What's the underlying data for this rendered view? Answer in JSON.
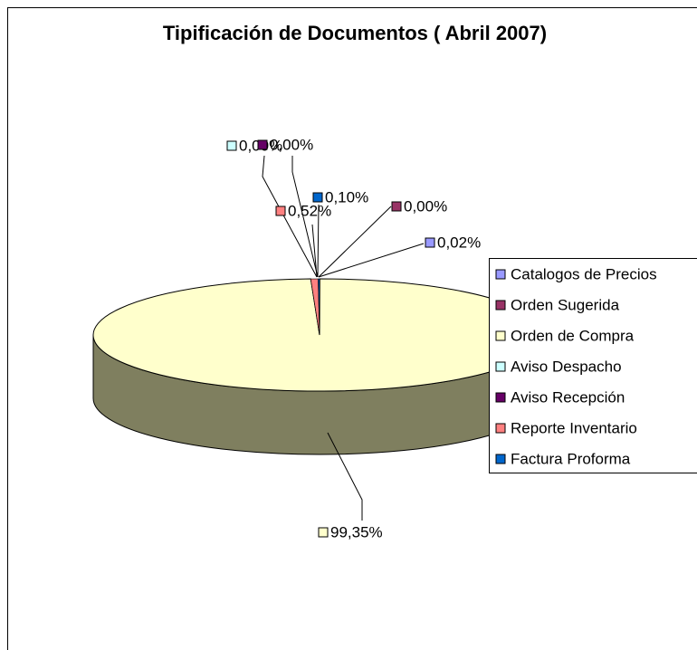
{
  "chart_data": {
    "type": "pie3d",
    "title": "Tipificación de Documentos ( Abril 2007)",
    "categories": [
      "Catalogos de Precios",
      "Orden Sugerida",
      "Orden de Compra",
      "Aviso Despacho",
      "Aviso Recepción",
      "Reporte Inventario",
      "Factura Proforma"
    ],
    "values": [
      0.02,
      0.0,
      99.35,
      0.0,
      0.0,
      0.52,
      0.1
    ],
    "value_labels": [
      "0,02%",
      "0,00%",
      "99,35%",
      "0,00%",
      "0,00%",
      "0,52%",
      "0,10%"
    ],
    "colors": [
      "#9999ff",
      "#993366",
      "#ffffcc",
      "#ccffff",
      "#660066",
      "#ff8080",
      "#0066cc"
    ],
    "legend": "right"
  }
}
